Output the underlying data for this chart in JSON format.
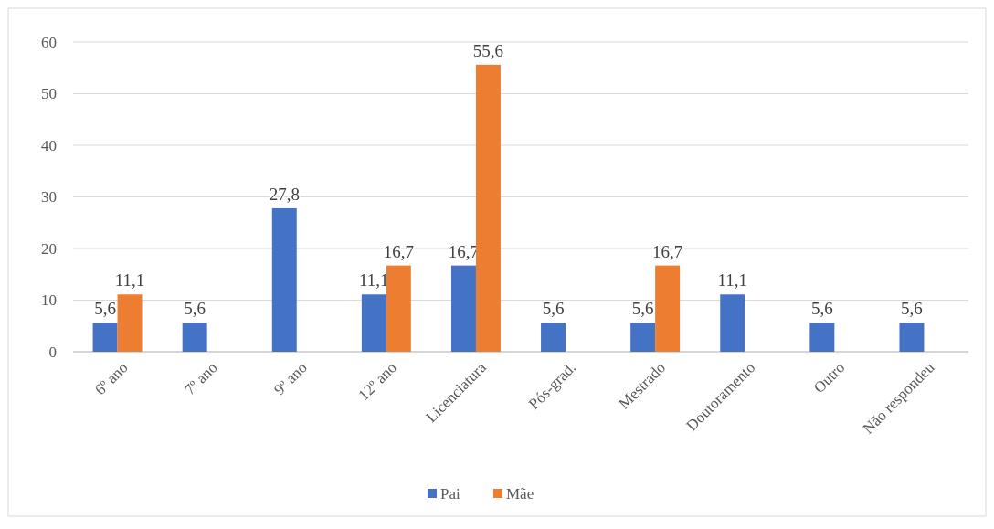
{
  "chart_data": {
    "type": "bar",
    "categories": [
      "6º ano",
      "7º ano",
      "9º ano",
      "12º ano",
      "Licenciatura",
      "Pós-grad.",
      "Mestrado",
      "Doutoramento",
      "Outro",
      "Não respondeu"
    ],
    "series": [
      {
        "name": "Pai",
        "color": "#4472c4",
        "values": [
          5.6,
          5.6,
          27.8,
          11.1,
          16.7,
          5.6,
          5.6,
          11.1,
          5.6,
          5.6
        ],
        "value_labels": [
          "5,6",
          "5,6",
          "27,8",
          "11,1",
          "16,7",
          "5,6",
          "5,6",
          "11,1",
          "5,6",
          "5,6"
        ]
      },
      {
        "name": "Mãe",
        "color": "#ed7d31",
        "values": [
          11.1,
          null,
          null,
          16.7,
          55.6,
          null,
          16.7,
          null,
          null,
          null
        ],
        "value_labels": [
          "11,1",
          null,
          null,
          "16,7",
          "55,6",
          null,
          "16,7",
          null,
          null,
          null
        ]
      }
    ],
    "ylim": [
      0,
      60
    ],
    "yticks": [
      0,
      10,
      20,
      30,
      40,
      50,
      60
    ],
    "grid": "y",
    "legend": "bottom"
  }
}
